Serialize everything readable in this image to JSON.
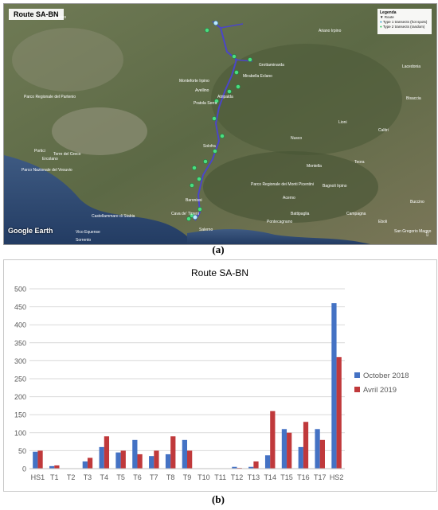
{
  "figure_a": {
    "caption": "(a)",
    "map_title": "Route SA-BN",
    "legend": {
      "title": "Legenda",
      "items": [
        "Route",
        "Type 1 transects (hot spots)",
        "Type 2 transects (random)"
      ]
    },
    "watermark": "Google Earth",
    "place_labels": [
      "Caiazzo",
      "Grottaminarda",
      "Mirabella Eclano",
      "Avellino",
      "Atripalda",
      "Pratola Serra",
      "Solofra",
      "Salerno",
      "Cava de' Tirreni",
      "Baronissi",
      "Torre del Greco",
      "Castellammare di Stabia",
      "Vico Equense",
      "Sorrento",
      "Portici",
      "Ercolano",
      "Ariano Irpino",
      "Nusco",
      "Bisaccia",
      "Teora",
      "Lacedonia",
      "Montella",
      "Bagnoli Irpino",
      "Acerno",
      "Campagna",
      "Eboli",
      "Battipaglia",
      "Pontecagnano",
      "Calitri",
      "San Gregorio Magno",
      "Buccino",
      "Lioni",
      "Monteforte Irpino",
      "Parco Regionale dei Monti Picentini",
      "Parco Nazionale del Vesuvio",
      "Parco Regionale del Partenio"
    ]
  },
  "figure_b": {
    "caption": "(b)"
  },
  "colors": {
    "series_1": "#4472c4",
    "series_2": "#c0393b",
    "gridline": "#d9d9d9",
    "axis_text": "#595959"
  },
  "chart_data": {
    "type": "bar",
    "title": "Route SA-BN",
    "xlabel": "",
    "ylabel": "",
    "ylim": [
      0,
      500
    ],
    "yticks": [
      0,
      50,
      100,
      150,
      200,
      250,
      300,
      350,
      400,
      450,
      500
    ],
    "grid": true,
    "legend_position": "right",
    "categories": [
      "HS1",
      "T1",
      "T2",
      "T3",
      "T4",
      "T5",
      "T6",
      "T7",
      "T8",
      "T9",
      "T10",
      "T11",
      "T12",
      "T13",
      "T14",
      "T15",
      "T16",
      "T17",
      "HS2"
    ],
    "series": [
      {
        "name": "October 2018",
        "values": [
          47,
          7,
          0,
          20,
          60,
          45,
          80,
          35,
          40,
          80,
          0,
          0,
          5,
          5,
          37,
          110,
          60,
          110,
          460
        ]
      },
      {
        "name": "Avril 2019",
        "values": [
          50,
          9,
          0,
          30,
          90,
          50,
          40,
          50,
          90,
          50,
          0,
          0,
          2,
          20,
          160,
          100,
          130,
          80,
          310
        ]
      }
    ]
  }
}
